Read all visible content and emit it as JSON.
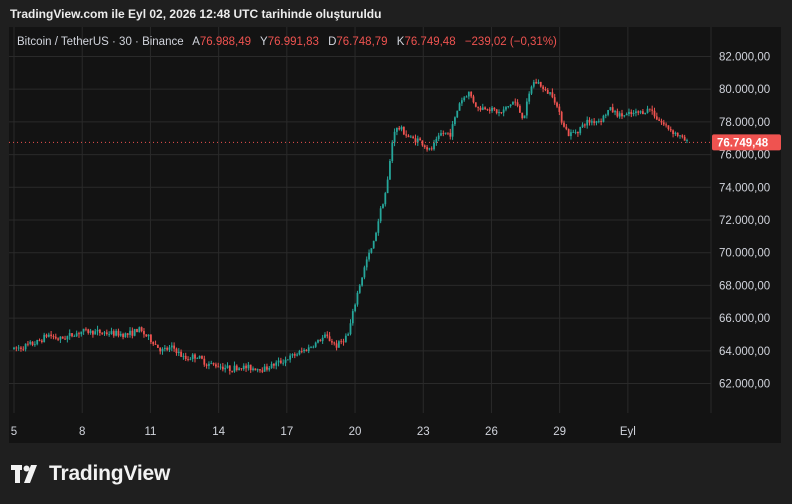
{
  "caption": "TradingView.com ile Eyl 02, 2026 12:48 UTC tarihinde oluşturuldu",
  "legend": {
    "symbol": "Bitcoin / TetherUS · 30 · Binance",
    "a_label": "A",
    "a_value": "76.988,49",
    "y_label": "Y",
    "y_value": "76.991,83",
    "d_label": "D",
    "d_value": "76.748,79",
    "k_label": "K",
    "k_value": "76.749,48",
    "change": "−239,02 (−0,31%)"
  },
  "price_label": "76.749,48",
  "brand": "TradingView",
  "colors": {
    "up": "#26a69a",
    "down": "#ef5350",
    "background": "#131313",
    "grid": "#2a2a2a",
    "text": "#d1d4dc"
  },
  "chart_data": {
    "type": "candlestick",
    "title": "Bitcoin / TetherUS · 30 · Binance",
    "x_ticks": [
      "5",
      "8",
      "11",
      "14",
      "17",
      "20",
      "23",
      "26",
      "29",
      "Eyl"
    ],
    "y_ticks": [
      "62.000,00",
      "64.000,00",
      "66.000,00",
      "68.000,00",
      "70.000,00",
      "72.000,00",
      "74.000,00",
      "76.000,00",
      "78.000,00",
      "80.000,00",
      "82.000,00"
    ],
    "y_tick_values": [
      62000,
      64000,
      66000,
      68000,
      70000,
      72000,
      74000,
      76000,
      78000,
      80000,
      82000
    ],
    "ylim": [
      60200,
      83800
    ],
    "last_price": 76749.48,
    "grid": true,
    "price_path": [
      [
        0,
        64100
      ],
      [
        1,
        64500
      ],
      [
        1.5,
        65000
      ],
      [
        2,
        64700
      ],
      [
        3,
        65200
      ],
      [
        4,
        65100
      ],
      [
        5,
        65000
      ],
      [
        5.5,
        65300
      ],
      [
        6,
        64700
      ],
      [
        6.5,
        64000
      ],
      [
        7,
        64200
      ],
      [
        7.5,
        63500
      ],
      [
        8,
        63700
      ],
      [
        8.5,
        63200
      ],
      [
        9,
        63100
      ],
      [
        9.5,
        62900
      ],
      [
        10,
        63000
      ],
      [
        11,
        62900
      ],
      [
        12,
        63500
      ],
      [
        13,
        64200
      ],
      [
        13.7,
        64900
      ],
      [
        14.2,
        64300
      ],
      [
        14.7,
        65000
      ],
      [
        15.1,
        67500
      ],
      [
        15.5,
        69500
      ],
      [
        15.8,
        70500
      ],
      [
        16.1,
        72500
      ],
      [
        16.4,
        74000
      ],
      [
        16.7,
        77500
      ],
      [
        17,
        77600
      ],
      [
        17.4,
        77000
      ],
      [
        17.8,
        76900
      ],
      [
        18.3,
        76200
      ],
      [
        18.8,
        77300
      ],
      [
        19.2,
        77300
      ],
      [
        19.6,
        79200
      ],
      [
        20,
        79800
      ],
      [
        20.4,
        78800
      ],
      [
        20.8,
        78900
      ],
      [
        21.4,
        78500
      ],
      [
        22,
        79300
      ],
      [
        22.4,
        78200
      ],
      [
        22.8,
        80400
      ],
      [
        23.1,
        80400
      ],
      [
        23.3,
        79900
      ],
      [
        23.7,
        79700
      ],
      [
        24,
        78400
      ],
      [
        24.4,
        77200
      ],
      [
        24.8,
        77500
      ],
      [
        25.2,
        78000
      ],
      [
        25.8,
        78100
      ],
      [
        26.2,
        78800
      ],
      [
        26.6,
        78400
      ],
      [
        26.9,
        78400
      ],
      [
        27.3,
        78500
      ],
      [
        27.6,
        78600
      ],
      [
        28,
        78800
      ],
      [
        28.3,
        78200
      ],
      [
        28.6,
        77800
      ],
      [
        29.1,
        77300
      ],
      [
        29.6,
        76750
      ]
    ]
  }
}
